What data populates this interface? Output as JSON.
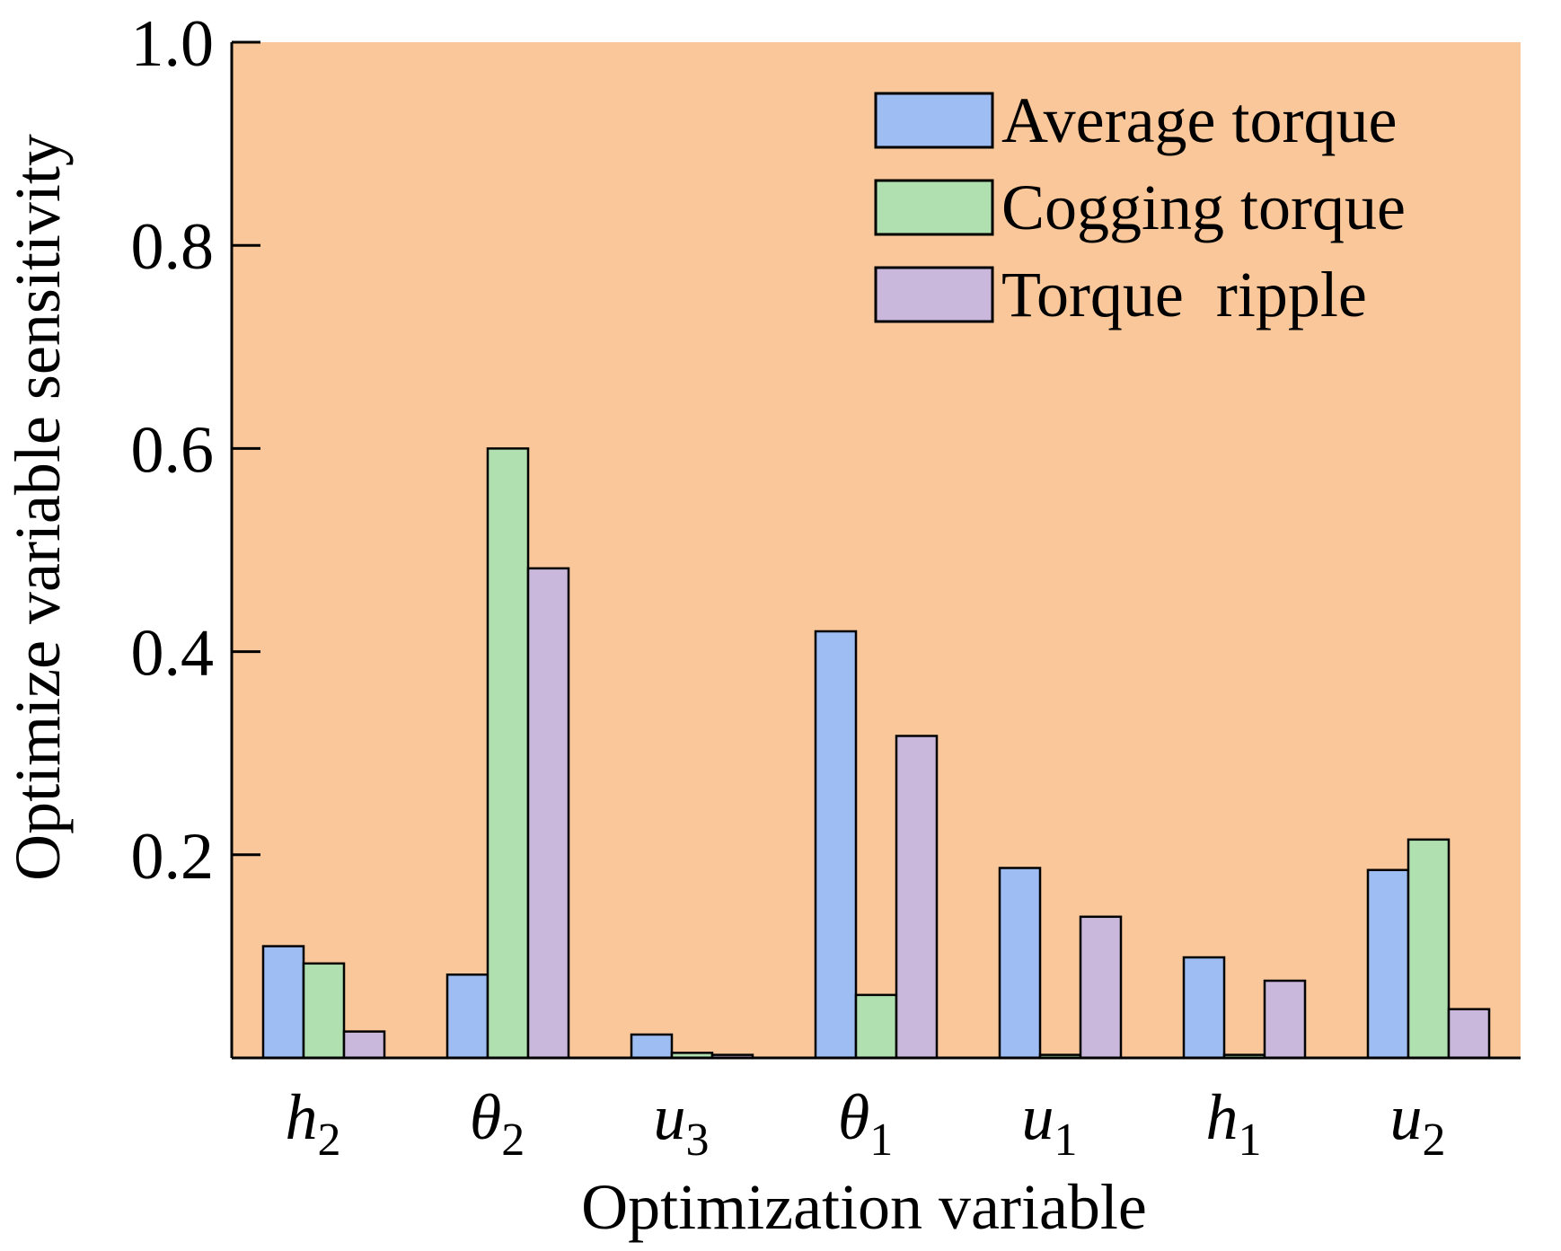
{
  "chart_data": {
    "type": "bar",
    "title": "",
    "xlabel": "Optimization variable",
    "ylabel": "Optimize variable sensitivity",
    "ylim": [
      0,
      1.0
    ],
    "yticks": [
      "0.2",
      "0.4",
      "0.6",
      "0.8",
      "1.0"
    ],
    "categories": [
      {
        "symbol": "h",
        "sub": "2"
      },
      {
        "symbol": "θ",
        "sub": "2"
      },
      {
        "symbol": "u",
        "sub": "3"
      },
      {
        "symbol": "θ",
        "sub": "1"
      },
      {
        "symbol": "u",
        "sub": "1"
      },
      {
        "symbol": "h",
        "sub": "1"
      },
      {
        "symbol": "u",
        "sub": "2"
      }
    ],
    "series": [
      {
        "name": "Average torque",
        "color": "#9dbdf3",
        "values": [
          0.11,
          0.082,
          0.023,
          0.42,
          0.187,
          0.099,
          0.185
        ]
      },
      {
        "name": "Cogging torque",
        "color": "#b0e0b0",
        "values": [
          0.093,
          0.6,
          0.005,
          0.062,
          0.003,
          0.003,
          0.215
        ]
      },
      {
        "name": "Torque  ripple",
        "color": "#c9b8dc",
        "values": [
          0.026,
          0.482,
          0.003,
          0.317,
          0.139,
          0.076,
          0.048
        ]
      }
    ],
    "legend": "top-right",
    "background": "#f9c79a",
    "grid": false
  }
}
